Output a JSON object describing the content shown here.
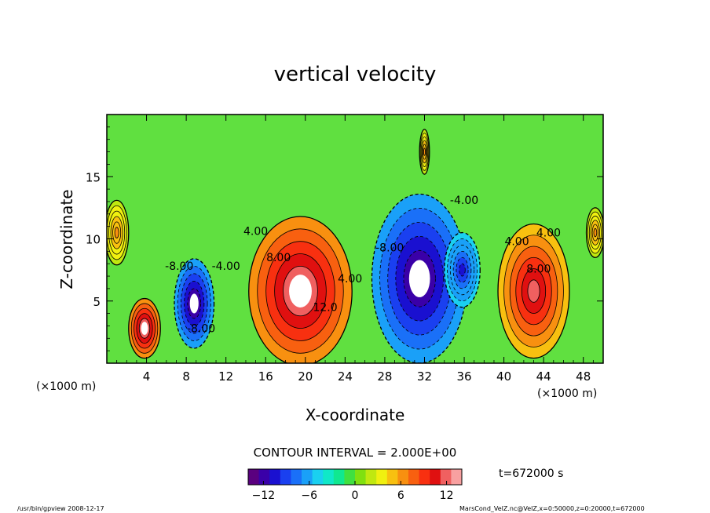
{
  "chart_data": {
    "type": "heatmap",
    "title": "vertical velocity",
    "xlabel": "X-coordinate",
    "ylabel": "Z-coordinate",
    "x_unit_left": "(×1000 m)",
    "x_unit_right": "(×1000 m)",
    "xlim": [
      0,
      50
    ],
    "ylim": [
      0,
      20
    ],
    "x_ticks": [
      4,
      8,
      12,
      16,
      20,
      24,
      28,
      32,
      36,
      40,
      44,
      48
    ],
    "y_ticks": [
      5,
      10,
      15
    ],
    "contour_interval_text": "CONTOUR INTERVAL = 2.000E+00",
    "time_label": "t=672000 s",
    "colorbar": {
      "range": [
        -14,
        14
      ],
      "ticks": [
        -12,
        -6,
        0,
        6,
        12
      ],
      "colors": [
        "#5a007f",
        "#3a00a8",
        "#1a10d0",
        "#1a40f0",
        "#1a70f8",
        "#1aa0f8",
        "#1ad0f0",
        "#10e8c8",
        "#10e890",
        "#40e040",
        "#80e010",
        "#c0e810",
        "#f0f010",
        "#f8c010",
        "#f89010",
        "#f86010",
        "#f83010",
        "#e01010",
        "#f06060",
        "#f8a0a0"
      ]
    },
    "cells": [
      {
        "x": 3.8,
        "z": 2.8,
        "rx": 1.6,
        "rz": 2.4,
        "value": 14
      },
      {
        "x": 8.8,
        "z": 4.8,
        "rx": 2.0,
        "rz": 3.6,
        "value": -14
      },
      {
        "x": 19.5,
        "z": 5.8,
        "rx": 5.2,
        "rz": 6.0,
        "value": 14
      },
      {
        "x": 31.5,
        "z": 6.8,
        "rx": 4.8,
        "rz": 6.8,
        "value": -14
      },
      {
        "x": 35.8,
        "z": 7.5,
        "rx": 1.8,
        "rz": 3.0,
        "value": -10
      },
      {
        "x": 43.0,
        "z": 5.8,
        "rx": 3.6,
        "rz": 5.4,
        "value": 12
      },
      {
        "x": 1.0,
        "z": 10.5,
        "rx": 1.2,
        "rz": 2.6,
        "value": 6
      },
      {
        "x": 49.2,
        "z": 10.5,
        "rx": 0.9,
        "rz": 2.0,
        "value": 6
      },
      {
        "x": 32.0,
        "z": 17.0,
        "rx": 0.5,
        "rz": 1.8,
        "value": 6
      }
    ],
    "contour_labels": [
      {
        "x": 7.3,
        "z": 7.5,
        "text": "-8.00"
      },
      {
        "x": 9.5,
        "z": 2.5,
        "text": "-8.00"
      },
      {
        "x": 12.0,
        "z": 7.5,
        "text": "-4.00"
      },
      {
        "x": 15.0,
        "z": 10.3,
        "text": "4.00"
      },
      {
        "x": 17.3,
        "z": 8.2,
        "text": "8.00"
      },
      {
        "x": 22.0,
        "z": 4.2,
        "text": "12.0"
      },
      {
        "x": 24.5,
        "z": 6.5,
        "text": "4.00"
      },
      {
        "x": 28.5,
        "z": 9.0,
        "text": "-8.00"
      },
      {
        "x": 36.0,
        "z": 12.8,
        "text": "-4.00"
      },
      {
        "x": 41.3,
        "z": 9.5,
        "text": "4.00"
      },
      {
        "x": 43.5,
        "z": 7.3,
        "text": "8.00"
      },
      {
        "x": 44.5,
        "z": 10.2,
        "text": "4.00"
      }
    ]
  },
  "footer": {
    "left_text": "/usr/bin/gpview   2008-12-17",
    "right_text": "MarsCond_VelZ.nc@VelZ,x=0:50000,z=0:20000,t=672000"
  }
}
